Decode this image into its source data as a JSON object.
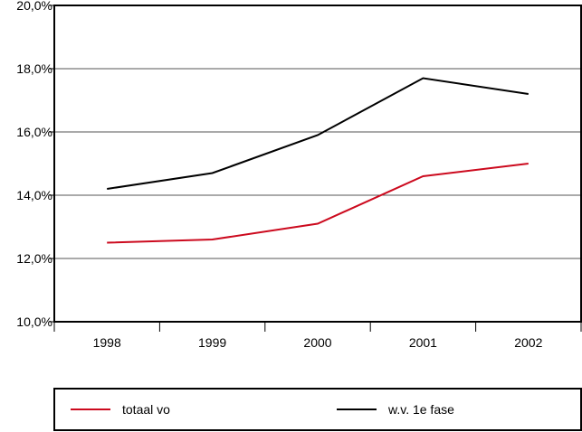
{
  "chart_data": {
    "type": "line",
    "title": "",
    "xlabel": "",
    "ylabel": "",
    "categories": [
      "1998",
      "1999",
      "2000",
      "2001",
      "2002"
    ],
    "ylim": [
      10,
      20
    ],
    "yticks": [
      10,
      12,
      14,
      16,
      18,
      20
    ],
    "ytick_labels": [
      "10,0%",
      "12,0%",
      "14,0%",
      "16,0%",
      "18,0%",
      "20,0%"
    ],
    "grid": true,
    "legend_position": "bottom",
    "series": [
      {
        "name": "totaal vo",
        "color": "#cc0a1e",
        "values": [
          12.5,
          12.6,
          13.1,
          14.6,
          15.0
        ]
      },
      {
        "name": "w.v. 1e fase",
        "color": "#000000",
        "values": [
          14.2,
          14.7,
          15.9,
          17.7,
          17.2
        ]
      }
    ]
  }
}
